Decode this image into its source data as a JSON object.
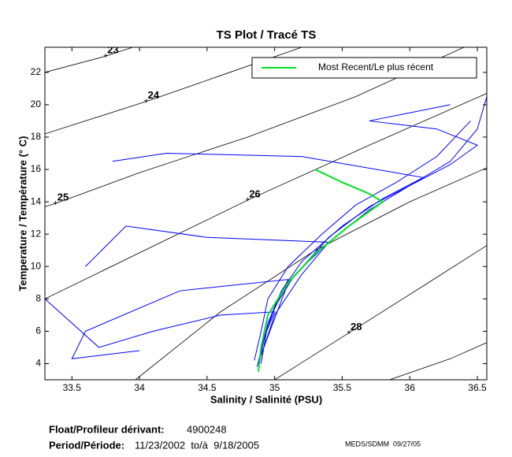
{
  "chart_data": {
    "type": "line",
    "title": "TS Plot / Tracé TS",
    "x_label": "Salinity / Salinité (PSU)",
    "y_label": "Temperature / Température (° C)",
    "xlim": [
      33.3,
      36.57
    ],
    "ylim": [
      3,
      23.55
    ],
    "xticks": [
      33.5,
      34,
      34.5,
      35,
      35.5,
      36,
      36.5
    ],
    "yticks": [
      4,
      6,
      8,
      10,
      12,
      14,
      16,
      18,
      20,
      22
    ],
    "contour_color": "#000000",
    "contours": [
      {
        "label": "23",
        "x": [
          33.3,
          33.75,
          33.95
        ],
        "values": [
          22,
          23,
          23.55
        ]
      },
      {
        "label": "24",
        "x": [
          33.3,
          34.05,
          34.6,
          35.2
        ],
        "values": [
          18.2,
          20.2,
          21.8,
          23.55
        ]
      },
      {
        "label": "25",
        "x": [
          33.3,
          33.38,
          34,
          34.8,
          35.6,
          36.4
        ],
        "values": [
          13.7,
          13.9,
          15.8,
          18,
          20.5,
          23.55
        ]
      },
      {
        "label": "26",
        "x": [
          33.3,
          34.8,
          35.7,
          36.57
        ],
        "values": [
          8,
          14.1,
          17.5,
          20.7
        ]
      },
      {
        "x": [
          33.97,
          34.6,
          35.3,
          36,
          36.57
        ],
        "values": [
          3,
          7.2,
          11,
          14,
          16.1
        ]
      },
      {
        "label": "28",
        "x": [
          35,
          35.55,
          36.1,
          36.57
        ],
        "values": [
          3,
          5.9,
          8.8,
          11.3
        ]
      },
      {
        "x": [
          35.85,
          36.3,
          36.57
        ],
        "values": [
          3,
          4.3,
          5.3
        ]
      }
    ],
    "series": [
      {
        "color": "#0000ff",
        "x": [
          34.88,
          34.92,
          35.0,
          35.15,
          35.4,
          35.7,
          36.0,
          36.3,
          36.5,
          36.57
        ],
        "values": [
          3.6,
          5.5,
          7.5,
          9.5,
          11.5,
          13.5,
          15.0,
          16.5,
          18.5,
          20.5
        ]
      },
      {
        "color": "#0000ff",
        "x": [
          34.85,
          34.9,
          34.95,
          35.1,
          35.35,
          35.6,
          35.9,
          36.2,
          36.45
        ],
        "values": [
          4.2,
          6.0,
          8.0,
          10.0,
          12.0,
          13.8,
          15.2,
          16.8,
          19.0
        ]
      },
      {
        "color": "#0000ff",
        "x": [
          34.9,
          34.95,
          35.05,
          35.2,
          35.5,
          35.8,
          36.1,
          35.2,
          34.2,
          33.8
        ],
        "values": [
          4.0,
          6.5,
          8.5,
          10.3,
          12.5,
          14.2,
          15.5,
          16.8,
          17.0,
          16.5
        ]
      },
      {
        "color": "#0000ff",
        "x": [
          34.87,
          34.93,
          35.0,
          34.6,
          34.1,
          33.7,
          33.3
        ],
        "values": [
          3.8,
          5.8,
          7.2,
          7.0,
          6.0,
          5.0,
          8.0
        ]
      },
      {
        "color": "#0000ff",
        "x": [
          34.9,
          35.0,
          35.2,
          35.4,
          34.5,
          33.9,
          33.6
        ],
        "values": [
          4.5,
          7.0,
          9.5,
          11.5,
          11.8,
          12.5,
          10.0
        ]
      },
      {
        "color": "#0000ff",
        "x": [
          34.92,
          35.1,
          35.4,
          35.7,
          36.0,
          36.3,
          36.5,
          36.2,
          35.7,
          36.3
        ],
        "values": [
          5.0,
          9.0,
          11.8,
          13.7,
          15.0,
          16.3,
          17.5,
          18.5,
          19.0,
          20.0
        ]
      },
      {
        "color": "#0000ff",
        "x": [
          34.88,
          34.95,
          35.1,
          34.3,
          33.6,
          33.5,
          34.0
        ],
        "values": [
          4.0,
          6.5,
          9.2,
          8.5,
          6.0,
          4.3,
          4.8
        ]
      },
      {
        "name": "Most Recent/Le plus récent",
        "color": "#00e020",
        "x": [
          34.88,
          34.9,
          34.95,
          35.1,
          35.3,
          35.55,
          35.8,
          35.7,
          35.5,
          35.3
        ],
        "values": [
          3.5,
          5,
          7,
          9,
          10.8,
          12.5,
          14,
          14.5,
          15.2,
          16
        ]
      }
    ],
    "footer": {
      "float_label": "Float/Profileur dérivant:",
      "float_id": "4900248",
      "period_label": "Period/Période:",
      "period": "11/23/2002  to/à  9/18/2005",
      "credit": "MEDS/SDMM  09/27/05"
    }
  }
}
